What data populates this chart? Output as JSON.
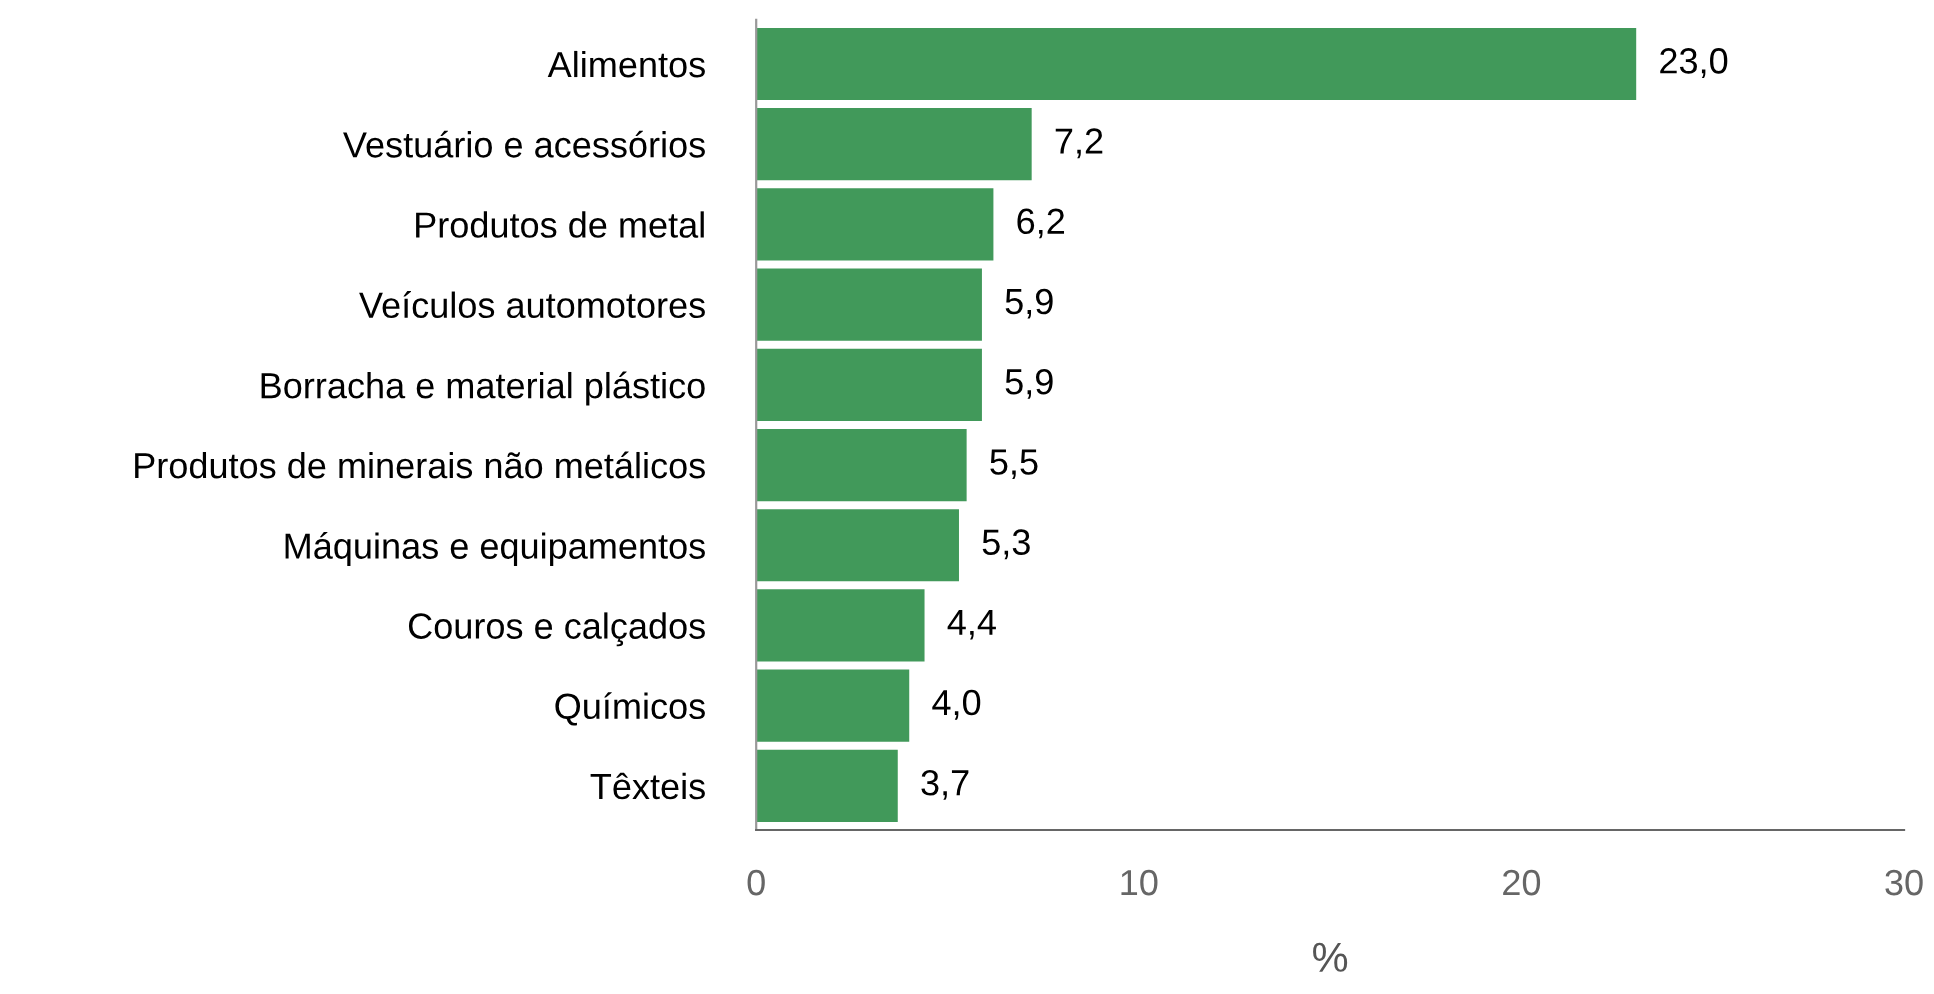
{
  "chart_data": {
    "type": "bar",
    "orientation": "horizontal",
    "xlabel": "%",
    "categories": [
      "Alimentos",
      "Vestuário e acessórios",
      "Produtos de metal",
      "Veículos automotores",
      "Borracha e material plástico",
      "Produtos de minerais não metálicos",
      "Máquinas e equipamentos",
      "Couros e calçados",
      "Químicos",
      "Têxteis"
    ],
    "values": [
      23.0,
      7.2,
      6.2,
      5.9,
      5.9,
      5.5,
      5.3,
      4.4,
      4.0,
      3.7
    ],
    "value_labels": [
      "23,0",
      "7,2",
      "6,2",
      "5,9",
      "5,9",
      "5,5",
      "5,3",
      "4,4",
      "4,0",
      "3,7"
    ],
    "color": "#41995a",
    "xlim": [
      0,
      30
    ],
    "xticks": [
      0,
      10,
      20,
      30
    ],
    "grid": false,
    "legend": false
  }
}
